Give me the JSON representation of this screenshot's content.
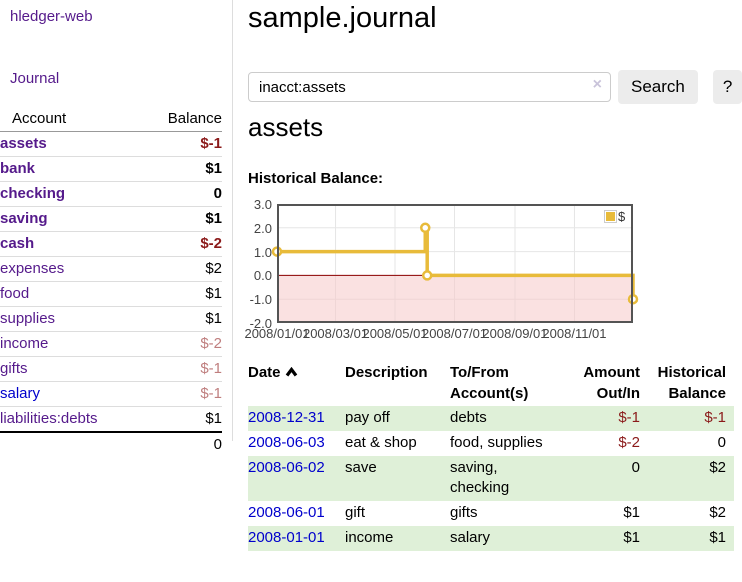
{
  "palette": {
    "link_purple": "#551a8b",
    "link_blue": "#0000cc",
    "negative_strong": "#8b1a1a",
    "negative_soft": "#bf7e7e",
    "row_stripe_green": "#dff0d8",
    "chart_line_gold": "#e8bb3a",
    "chart_fill_pink": "#f5c8c8",
    "chart_zero_line": "#8b0000",
    "chart_border": "#545454"
  },
  "sidebar": {
    "app_title": "hledger-web",
    "nav_journal": "Journal",
    "accounts_table": {
      "headers": {
        "account": "Account",
        "balance": "Balance"
      },
      "rows": [
        {
          "account": "assets",
          "balance": "$-1",
          "depth": 1,
          "bold": true,
          "amount_class": "neg-strong",
          "link": "purple"
        },
        {
          "account": "bank",
          "balance": "$1",
          "depth": 2,
          "bold": true,
          "amount_class": "plain",
          "link": "purple"
        },
        {
          "account": "checking",
          "balance": "0",
          "depth": 3,
          "bold": true,
          "amount_class": "plain",
          "link": "purple"
        },
        {
          "account": "saving",
          "balance": "$1",
          "depth": 3,
          "bold": true,
          "amount_class": "plain",
          "link": "purple"
        },
        {
          "account": "cash",
          "balance": "$-2",
          "depth": 2,
          "bold": true,
          "amount_class": "neg-strong",
          "link": "purple"
        },
        {
          "account": "expenses",
          "balance": "$2",
          "depth": 1,
          "bold": false,
          "amount_class": "plain",
          "link": "purple"
        },
        {
          "account": "food",
          "balance": "$1",
          "depth": 2,
          "bold": false,
          "amount_class": "plain",
          "link": "purple"
        },
        {
          "account": "supplies",
          "balance": "$1",
          "depth": 2,
          "bold": false,
          "amount_class": "plain",
          "link": "purple"
        },
        {
          "account": "income",
          "balance": "$-2",
          "depth": 1,
          "bold": false,
          "amount_class": "neg-soft",
          "link": "purple"
        },
        {
          "account": "gifts",
          "balance": "$-1",
          "depth": 2,
          "bold": false,
          "amount_class": "neg-soft",
          "link": "purple"
        },
        {
          "account": "salary",
          "balance": "$-1",
          "depth": 2,
          "bold": false,
          "amount_class": "neg-soft",
          "link": "blue"
        },
        {
          "account": "liabilities:debts",
          "balance": "$1",
          "depth": 1,
          "bold": false,
          "amount_class": "plain",
          "link": "purple"
        }
      ],
      "total": "0"
    }
  },
  "header": {
    "title": "sample.journal"
  },
  "search": {
    "value": "inacct:assets",
    "clear_icon": "×",
    "button_label": "Search",
    "help_label": "?"
  },
  "account_page": {
    "heading": "assets",
    "chart_title": "Historical Balance:"
  },
  "chart_data": {
    "type": "line",
    "step": true,
    "title": "Historical Balance:",
    "series": [
      {
        "name": "$",
        "color": "#e8bb3a",
        "points": [
          {
            "date": "2008/01/01",
            "value": 1
          },
          {
            "date": "2008/06/01",
            "value": 2
          },
          {
            "date": "2008/06/03",
            "value": 0
          },
          {
            "date": "2008/12/31",
            "value": -1
          }
        ]
      }
    ],
    "xlim": [
      "2008/01/01",
      "2008/12/31"
    ],
    "ylim": [
      -2,
      3
    ],
    "yticks": [
      {
        "label": "3.0",
        "value": 3
      },
      {
        "label": "2.0",
        "value": 2
      },
      {
        "label": "1.0",
        "value": 1
      },
      {
        "label": "0.0",
        "value": 0
      },
      {
        "label": "-1.0",
        "value": -1
      },
      {
        "label": "-2.0",
        "value": -2
      }
    ],
    "xticks": [
      "2008/01/01",
      "2008/03/01",
      "2008/05/01",
      "2008/07/01",
      "2008/09/01",
      "2008/11/01"
    ],
    "grid": true,
    "legend_position": "top-right",
    "below_zero_fill": "#f5c8c8",
    "zero_line_color": "#8b0000",
    "border_color": "#545454"
  },
  "register": {
    "headers": {
      "date": "Date",
      "sort_direction": "ascending",
      "description": "Description",
      "accounts": "To/From Account(s)",
      "amount": "Amount Out/In",
      "balance": "Historical Balance"
    },
    "rows": [
      {
        "date": "2008-12-31",
        "description": "pay off",
        "accounts": "debts",
        "amount": "$-1",
        "amount_class": "neg",
        "balance": "$-1",
        "balance_class": "neg"
      },
      {
        "date": "2008-06-03",
        "description": "eat & shop",
        "accounts": "food, supplies",
        "amount": "$-2",
        "amount_class": "neg",
        "balance": "0",
        "balance_class": "plain"
      },
      {
        "date": "2008-06-02",
        "description": "save",
        "accounts": "saving, checking",
        "amount": "0",
        "amount_class": "plain",
        "balance": "$2",
        "balance_class": "plain"
      },
      {
        "date": "2008-06-01",
        "description": "gift",
        "accounts": "gifts",
        "amount": "$1",
        "amount_class": "plain",
        "balance": "$2",
        "balance_class": "plain"
      },
      {
        "date": "2008-01-01",
        "description": "income",
        "accounts": "salary",
        "amount": "$1",
        "amount_class": "plain",
        "balance": "$1",
        "balance_class": "plain"
      }
    ]
  }
}
